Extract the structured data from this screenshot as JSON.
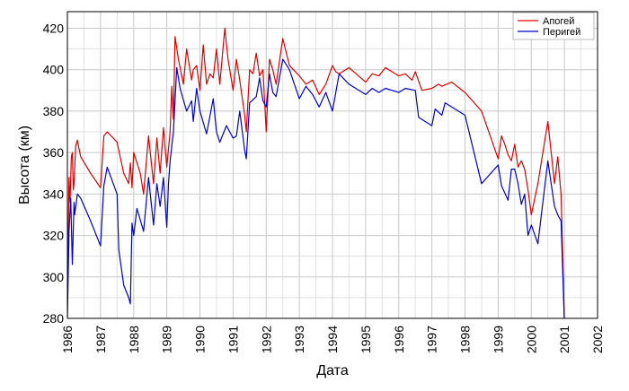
{
  "chart_data": {
    "type": "line",
    "xlabel": "Дата",
    "ylabel": "Высота (км)",
    "xlim": [
      1986,
      2002
    ],
    "ylim": [
      280,
      428
    ],
    "xticks": [
      "1986",
      "1987",
      "1988",
      "1989",
      "1990",
      "1991",
      "1992",
      "1993",
      "1994",
      "1995",
      "1996",
      "1997",
      "1998",
      "1999",
      "2000",
      "2001",
      "2002"
    ],
    "yticks": [
      "280",
      "300",
      "320",
      "340",
      "360",
      "380",
      "400",
      "420"
    ],
    "grid": true,
    "legend_position": "top-right",
    "series": [
      {
        "name": "Апогей",
        "color": "#dd0000",
        "x": [
          1986.0,
          1986.05,
          1986.08,
          1986.12,
          1986.15,
          1986.18,
          1986.2,
          1986.25,
          1986.3,
          1986.35,
          1986.4,
          1986.7,
          1987.0,
          1987.1,
          1987.2,
          1987.5,
          1987.7,
          1987.85,
          1987.9,
          1987.95,
          1988.0,
          1988.2,
          1988.3,
          1988.45,
          1988.6,
          1988.7,
          1988.8,
          1988.9,
          1989.0,
          1989.1,
          1989.15,
          1989.2,
          1989.25,
          1989.35,
          1989.5,
          1989.6,
          1989.75,
          1989.8,
          1989.9,
          1990.0,
          1990.1,
          1990.2,
          1990.3,
          1990.4,
          1990.5,
          1990.6,
          1990.75,
          1990.85,
          1991.0,
          1991.1,
          1991.2,
          1991.35,
          1991.4,
          1991.5,
          1991.6,
          1991.7,
          1991.8,
          1991.9,
          1992.0,
          1992.1,
          1992.2,
          1992.3,
          1992.5,
          1992.7,
          1993.0,
          1993.2,
          1993.4,
          1993.6,
          1993.8,
          1994.0,
          1994.1,
          1994.2,
          1994.5,
          1995.0,
          1995.2,
          1995.4,
          1995.6,
          1995.8,
          1996.0,
          1996.2,
          1996.4,
          1996.5,
          1996.7,
          1997.0,
          1997.2,
          1997.3,
          1997.6,
          1998.0,
          1998.5,
          1999.0,
          1999.1,
          1999.2,
          1999.3,
          1999.4,
          1999.5,
          1999.6,
          1999.7,
          1999.8,
          1999.9,
          2000.0,
          2000.2,
          2000.5,
          2000.7,
          2000.8,
          2000.9,
          2001.0
        ],
        "y": [
          290,
          348,
          336,
          358,
          360,
          342,
          345,
          363,
          366,
          362,
          358,
          350,
          343,
          368,
          370,
          365,
          350,
          345,
          355,
          343,
          360,
          350,
          340,
          368,
          345,
          367,
          350,
          372,
          353,
          370,
          392,
          376,
          416,
          405,
          393,
          410,
          395,
          400,
          402,
          390,
          412,
          393,
          398,
          396,
          410,
          393,
          420,
          405,
          390,
          405,
          395,
          378,
          370,
          400,
          398,
          408,
          397,
          400,
          370,
          405,
          400,
          393,
          415,
          402,
          397,
          393,
          395,
          388,
          393,
          402,
          399,
          398,
          401,
          394,
          398,
          397,
          401,
          399,
          397,
          398,
          395,
          399,
          390,
          391,
          393,
          392,
          394,
          389,
          380,
          357,
          368,
          364,
          359,
          356,
          364,
          353,
          356,
          352,
          342,
          330,
          345,
          375,
          345,
          358,
          340,
          278
        ],
        "x_real": null
      },
      {
        "name": "Перигей",
        "color": "#0000cc",
        "x": [
          1986.0,
          1986.05,
          1986.1,
          1986.15,
          1986.2,
          1986.22,
          1986.3,
          1986.4,
          1986.7,
          1987.0,
          1987.1,
          1987.2,
          1987.5,
          1987.55,
          1987.7,
          1987.85,
          1987.9,
          1987.95,
          1988.0,
          1988.1,
          1988.3,
          1988.45,
          1988.6,
          1988.7,
          1988.8,
          1988.9,
          1989.0,
          1989.05,
          1989.1,
          1989.2,
          1989.3,
          1989.4,
          1989.6,
          1989.75,
          1989.8,
          1989.9,
          1990.0,
          1990.2,
          1990.4,
          1990.5,
          1990.6,
          1990.8,
          1991.0,
          1991.1,
          1991.2,
          1991.35,
          1991.4,
          1991.5,
          1991.7,
          1991.8,
          1991.9,
          1992.0,
          1992.1,
          1992.2,
          1992.3,
          1992.5,
          1992.7,
          1993.0,
          1993.2,
          1993.4,
          1993.6,
          1993.8,
          1994.0,
          1994.2,
          1994.5,
          1995.0,
          1995.2,
          1995.4,
          1995.6,
          1995.8,
          1996.0,
          1996.2,
          1996.5,
          1996.6,
          1997.0,
          1997.1,
          1997.3,
          1997.4,
          1998.0,
          1998.5,
          1999.0,
          1999.1,
          1999.3,
          1999.4,
          1999.5,
          1999.6,
          1999.7,
          1999.8,
          1999.9,
          2000.0,
          2000.2,
          2000.5,
          2000.7,
          2000.8,
          2000.9,
          2001.0
        ],
        "y": [
          280,
          322,
          338,
          306,
          336,
          330,
          340,
          338,
          327,
          315,
          344,
          353,
          340,
          313,
          296,
          290,
          287,
          326,
          320,
          333,
          322,
          348,
          325,
          345,
          334,
          348,
          324,
          345,
          356,
          370,
          401,
          391,
          380,
          385,
          375,
          391,
          380,
          369,
          386,
          370,
          365,
          373,
          367,
          368,
          380,
          361,
          357,
          384,
          387,
          396,
          385,
          382,
          398,
          389,
          387,
          405,
          400,
          386,
          392,
          388,
          382,
          389,
          380,
          398,
          393,
          388,
          391,
          389,
          391,
          390,
          389,
          391,
          390,
          377,
          373,
          381,
          378,
          384,
          378,
          345,
          354,
          344,
          337,
          352,
          352,
          345,
          335,
          340,
          320,
          325,
          316,
          356,
          334,
          330,
          327,
          278
        ]
      }
    ]
  }
}
